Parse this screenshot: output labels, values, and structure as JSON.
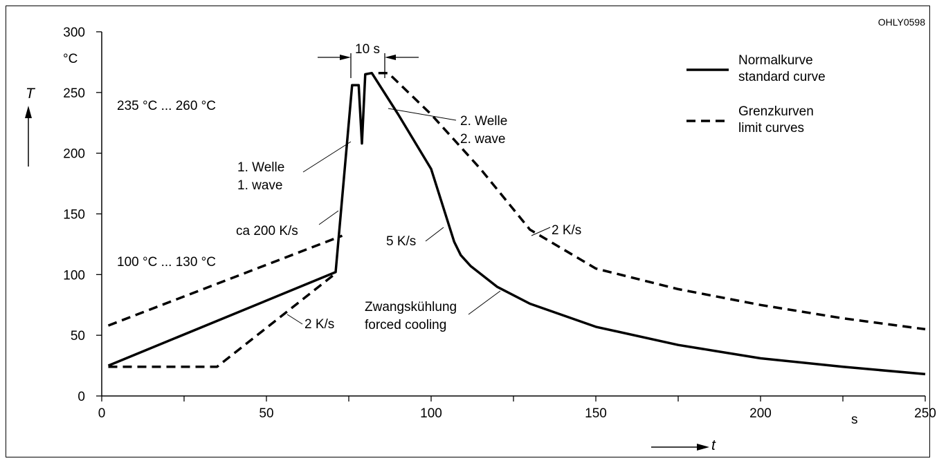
{
  "chart_data": {
    "type": "line",
    "figure_code": "OHLY0598",
    "x": {
      "ticks": [
        0,
        50,
        100,
        150,
        200,
        250
      ],
      "minor_ticks": [
        25,
        75,
        125,
        175,
        225
      ],
      "unit": "s",
      "symbol": "t",
      "range": [
        0,
        250
      ]
    },
    "y": {
      "ticks": [
        0,
        50,
        100,
        150,
        200,
        250,
        300
      ],
      "unit": "°C",
      "symbol": "T",
      "range": [
        0,
        300
      ]
    },
    "legend": {
      "position": "top-right",
      "entries": [
        {
          "style": "solid",
          "line1": "Normalkurve",
          "line2": "standard curve"
        },
        {
          "style": "dashed",
          "line1": "Grenzkurven",
          "line2": "limit curves"
        }
      ]
    },
    "series": [
      {
        "style": "solid",
        "points": [
          [
            2,
            25
          ],
          [
            71,
            102
          ],
          [
            76,
            256
          ],
          [
            78,
            256
          ],
          [
            79,
            208
          ],
          [
            80,
            265
          ],
          [
            82,
            266
          ],
          [
            90,
            232
          ],
          [
            100,
            187
          ],
          [
            107,
            127
          ],
          [
            109,
            116
          ],
          [
            112,
            107
          ],
          [
            120,
            90
          ],
          [
            130,
            76
          ],
          [
            150,
            57
          ],
          [
            175,
            42
          ],
          [
            200,
            31
          ],
          [
            225,
            24
          ],
          [
            250,
            18
          ]
        ]
      },
      {
        "style": "dashed",
        "points": [
          [
            2,
            58
          ],
          [
            73,
            132
          ]
        ]
      },
      {
        "style": "dashed",
        "points": [
          [
            2,
            24
          ],
          [
            35,
            24
          ],
          [
            71,
            101
          ]
        ]
      },
      {
        "style": "dashed",
        "points": [
          [
            84,
            266
          ],
          [
            87,
            266
          ],
          [
            100,
            232
          ],
          [
            115,
            187
          ],
          [
            130,
            137
          ],
          [
            150,
            105
          ],
          [
            175,
            88
          ],
          [
            200,
            75
          ],
          [
            225,
            64
          ],
          [
            250,
            55
          ]
        ]
      }
    ],
    "annotations": {
      "peak_range": "235 °C ... 260 °C",
      "preheat_range": "100 °C ... 130 °C",
      "first_wave_de": "1. Welle",
      "first_wave_en": "1. wave",
      "second_wave_de": "2. Welle",
      "second_wave_en": "2. wave",
      "heating_rate": "ca 200 K/s",
      "cooling_rate_standard": "5 K/s",
      "cooling_rate_limit": "2 K/s",
      "preheat_rate_limit": "2 K/s",
      "forced_cooling_de": "Zwangskühlung",
      "forced_cooling_en": "forced cooling",
      "dwell_time": "10 s"
    }
  }
}
